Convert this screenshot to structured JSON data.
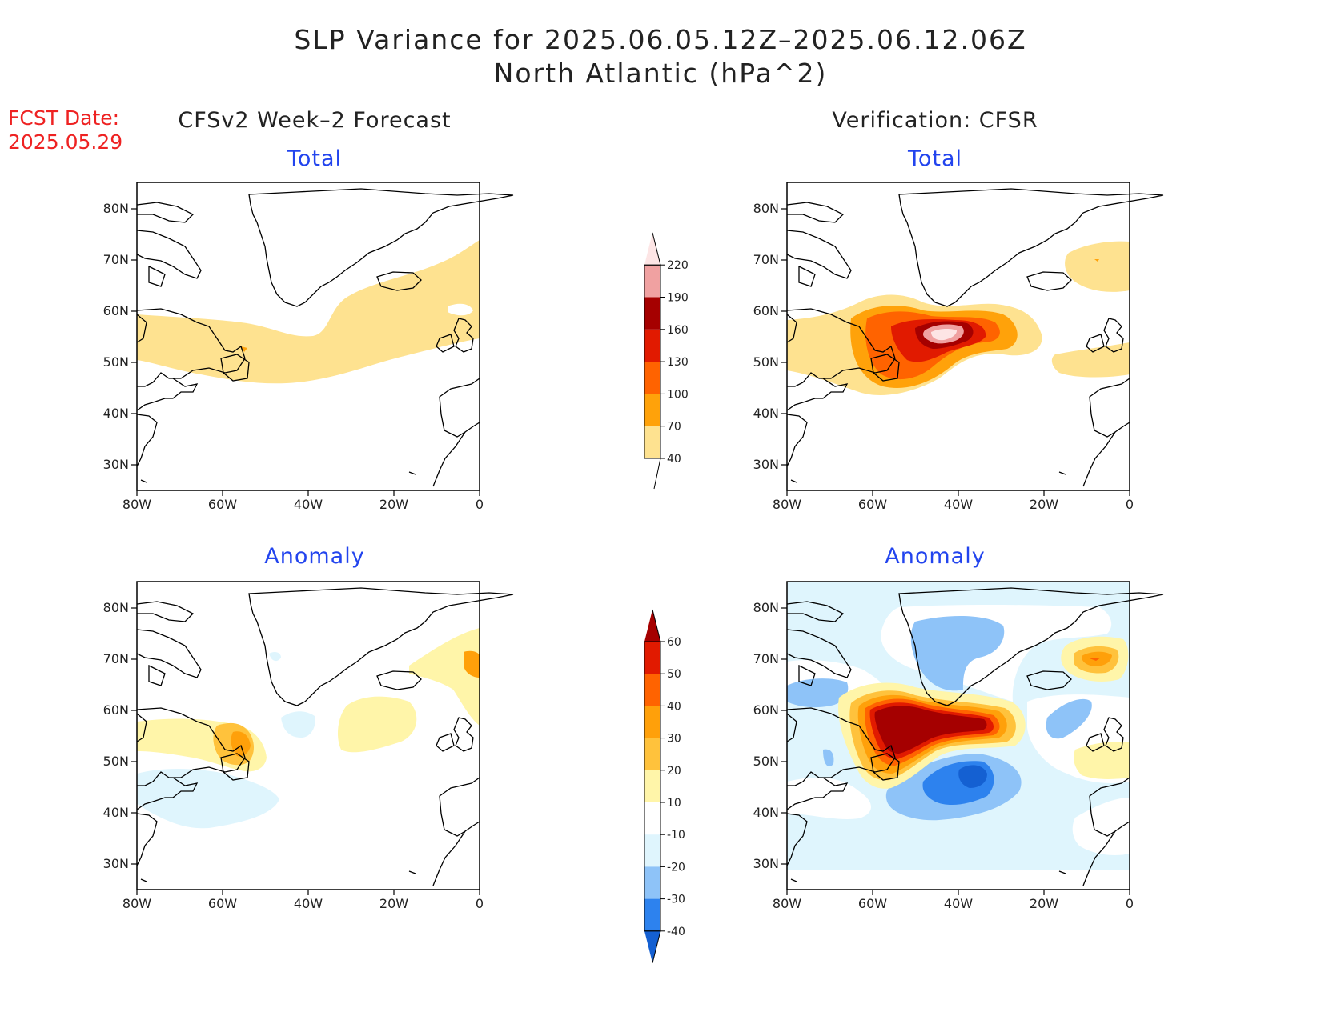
{
  "title_line1": "SLP Variance for 2025.06.05.12Z–2025.06.12.06Z",
  "title_line2": "North Atlantic (hPa^2)",
  "fcst_label": "FCST Date:",
  "fcst_date": "2025.05.29",
  "left_column_title": "CFSv2 Week–2 Forecast",
  "right_column_title": "Verification: CFSR",
  "panel_titles": {
    "total": "Total",
    "anomaly": "Anomaly"
  },
  "lat_labels": [
    "80N",
    "70N",
    "60N",
    "50N",
    "40N",
    "30N"
  ],
  "lon_labels": [
    "80W",
    "60W",
    "40W",
    "20W",
    "0"
  ],
  "total_colorbar": {
    "levels": [
      "40",
      "70",
      "100",
      "130",
      "160",
      "190",
      "220"
    ],
    "colors": [
      "#fee290",
      "#ffa20a",
      "#ff6300",
      "#e11a00",
      "#a50000",
      "#f0a1a1",
      "#fde5e5"
    ]
  },
  "anomaly_colorbar": {
    "levels": [
      "-40",
      "-30",
      "-20",
      "-10",
      "10",
      "20",
      "30",
      "40",
      "50",
      "60"
    ],
    "colors": [
      "#1460d2",
      "#2d82ee",
      "#8ec3f8",
      "#dff5fd",
      "#ffffff",
      "#fff5a9",
      "#ffc23c",
      "#ffa00a",
      "#ff6300",
      "#e11a00",
      "#a50000"
    ]
  },
  "domain": {
    "lon_range": [
      "80W",
      "0"
    ],
    "lat_range": [
      "25N",
      "85N"
    ]
  }
}
